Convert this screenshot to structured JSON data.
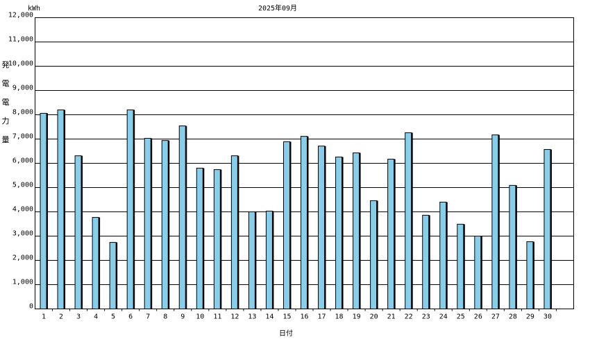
{
  "chart_data": {
    "type": "bar",
    "title": "2025年09月",
    "unit_label": "kWh",
    "y_label": "発電電力量",
    "x_label": "日付",
    "categories": [
      "1",
      "2",
      "3",
      "4",
      "5",
      "6",
      "7",
      "8",
      "9",
      "10",
      "11",
      "12",
      "13",
      "14",
      "15",
      "16",
      "17",
      "18",
      "19",
      "20",
      "21",
      "22",
      "23",
      "24",
      "25",
      "26",
      "27",
      "28",
      "29",
      "30"
    ],
    "values": [
      8060,
      8200,
      6310,
      3770,
      2740,
      8200,
      7030,
      6940,
      7540,
      5800,
      5740,
      6310,
      4000,
      4030,
      6890,
      7110,
      6710,
      6260,
      6430,
      4460,
      6170,
      7260,
      3860,
      4400,
      3490,
      3000,
      7170,
      5090,
      2770,
      6570
    ],
    "color": "#87ceeb",
    "ylim": [
      0,
      12000
    ],
    "yticks": [
      0,
      {
        "value": 1000,
        "label": "1,000"
      },
      {
        "value": 2000,
        "label": "2,000"
      },
      {
        "value": 3000,
        "label": "3,000"
      },
      {
        "value": 4000,
        "label": "4,000"
      },
      {
        "value": 5000,
        "label": "5,000"
      },
      {
        "value": 6000,
        "label": "6,000"
      },
      {
        "value": 7000,
        "label": "7,000"
      },
      {
        "value": 8000,
        "label": "8,000"
      },
      {
        "value": 9000,
        "label": "9,000"
      },
      {
        "value": 10000,
        "label": "10,000"
      },
      {
        "value": 11000,
        "label": "11,000"
      },
      {
        "value": 12000,
        "label": "12,000"
      }
    ],
    "grid": true
  }
}
